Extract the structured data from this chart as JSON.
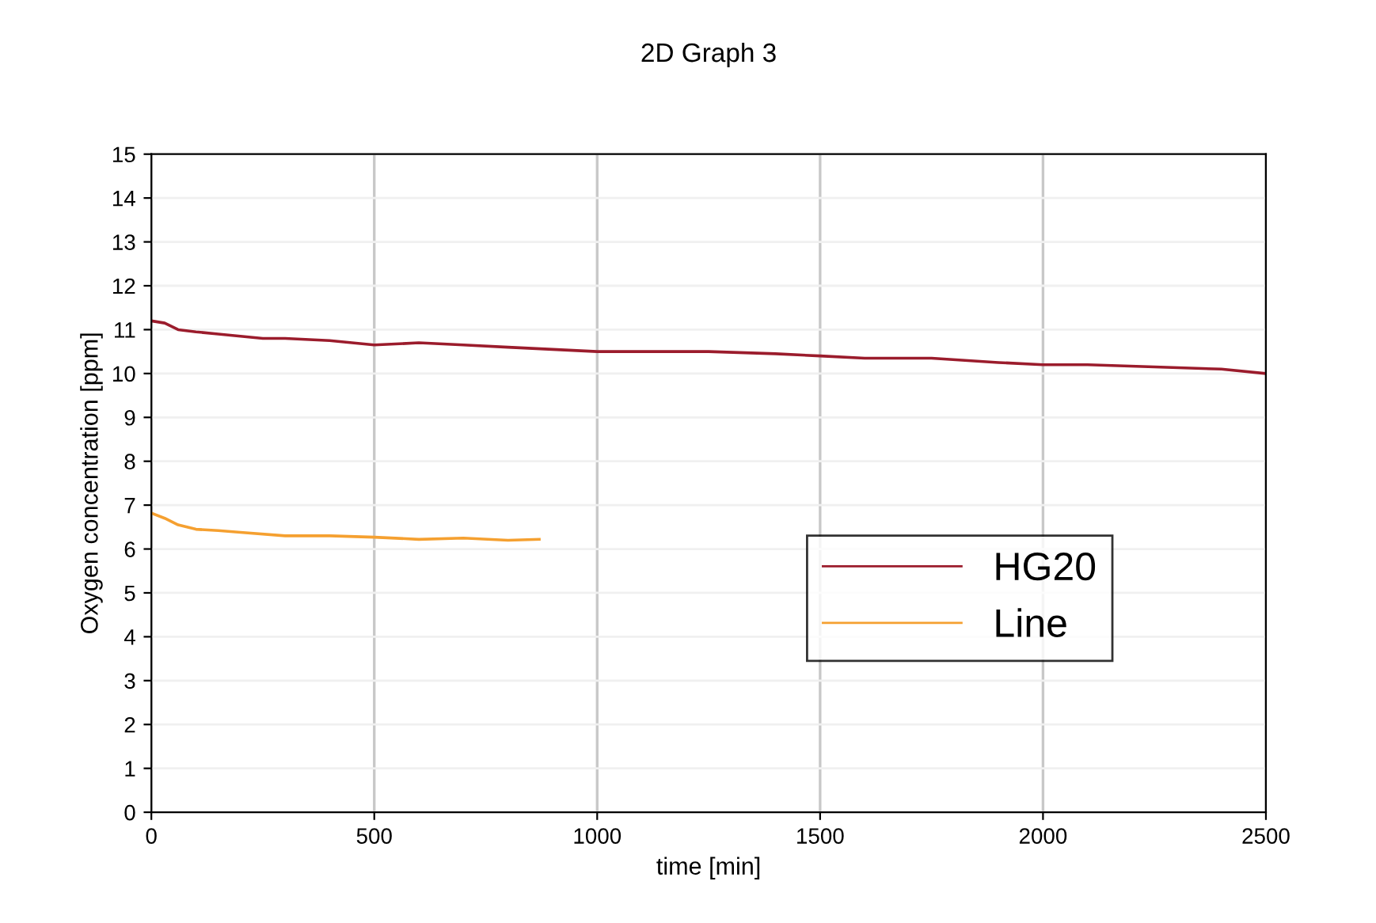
{
  "chart_data": {
    "type": "line",
    "title": "2D Graph 3",
    "xlabel": "time [min]",
    "ylabel": "Oxygen concentration [ppm]",
    "xlim": [
      0,
      2500
    ],
    "ylim": [
      0,
      15
    ],
    "xticks": [
      0,
      500,
      1000,
      1500,
      2000,
      2500
    ],
    "yticks": [
      0,
      1,
      2,
      3,
      4,
      5,
      6,
      7,
      8,
      9,
      10,
      11,
      12,
      13,
      14,
      15
    ],
    "grid": true,
    "legend": "lower right",
    "line_style": "solid",
    "marker": "none",
    "series": [
      {
        "name": "HG20",
        "color": "#9b1c2c",
        "x": [
          0,
          30,
          60,
          100,
          150,
          200,
          250,
          300,
          400,
          500,
          600,
          700,
          800,
          900,
          1000,
          1100,
          1250,
          1400,
          1500,
          1600,
          1750,
          1900,
          2000,
          2100,
          2250,
          2400,
          2500
        ],
        "values": [
          11.2,
          11.15,
          11.0,
          10.95,
          10.9,
          10.85,
          10.8,
          10.8,
          10.75,
          10.65,
          10.7,
          10.65,
          10.6,
          10.55,
          10.5,
          10.5,
          10.5,
          10.45,
          10.4,
          10.35,
          10.35,
          10.25,
          10.2,
          10.2,
          10.15,
          10.1,
          10.0
        ]
      },
      {
        "name": "Line",
        "color": "#f5a030",
        "x": [
          0,
          30,
          60,
          100,
          150,
          200,
          300,
          400,
          500,
          600,
          700,
          800,
          870
        ],
        "values": [
          6.82,
          6.7,
          6.55,
          6.45,
          6.42,
          6.38,
          6.3,
          6.3,
          6.27,
          6.22,
          6.25,
          6.2,
          6.22
        ]
      }
    ]
  }
}
